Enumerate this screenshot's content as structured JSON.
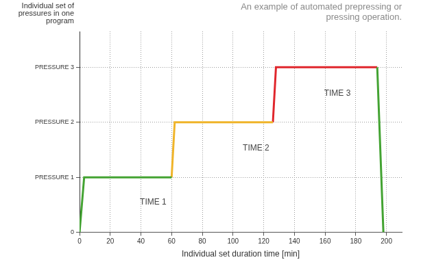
{
  "chart_data": {
    "type": "line",
    "title": "An example of automated prepressing or pressing operation.",
    "ylabel": "Individual set of pressures in one program",
    "xlabel": "Individual set duration time [min]",
    "x": [
      0,
      3,
      60,
      62,
      126,
      128,
      194,
      198
    ],
    "series": [
      {
        "color": "#43a332",
        "values": [
          0,
          1,
          1,
          null,
          null,
          null,
          3,
          0
        ]
      },
      {
        "color": "#f0b429",
        "values": [
          null,
          null,
          1,
          2,
          2,
          null,
          null,
          null
        ]
      },
      {
        "color": "#e0262c",
        "values": [
          null,
          null,
          null,
          null,
          2,
          3,
          3,
          null
        ]
      }
    ],
    "xlim": [
      0,
      210
    ],
    "xticks": [
      0,
      20,
      40,
      60,
      80,
      100,
      120,
      140,
      160,
      180,
      200
    ],
    "ylim": [
      0,
      3.65
    ],
    "yticks": [
      0,
      {
        "value": 1,
        "label": "PRESSURE 1"
      },
      {
        "value": 2,
        "label": "PRESSURE 2"
      },
      {
        "value": 3,
        "label": "PRESSURE 3"
      }
    ],
    "annotations": [
      {
        "text": "TIME 1",
        "x": 48,
        "y": 0.55
      },
      {
        "text": "TIME 2",
        "x": 115,
        "y": 1.53
      },
      {
        "text": "TIME 3",
        "x": 168,
        "y": 2.52
      }
    ],
    "grid": true
  }
}
